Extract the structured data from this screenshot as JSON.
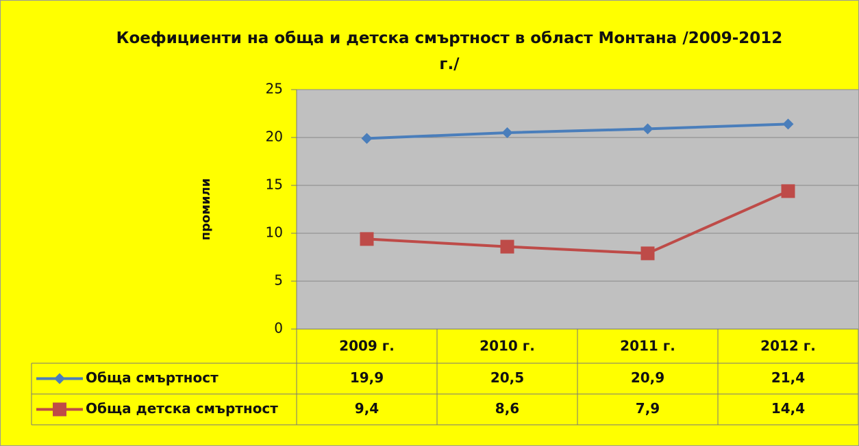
{
  "chart_data": {
    "type": "line",
    "title": "Коефициенти на обща и детска смъртност в област Монтана /2009-2012 г./",
    "y_label": "промили",
    "categories": [
      "2009 г.",
      "2010 г.",
      "2011 г.",
      "2012 г."
    ],
    "series": [
      {
        "name": "Обща смъртност",
        "color": "#4a7ebb",
        "marker": "diamond",
        "values": [
          19.9,
          20.5,
          20.9,
          21.4
        ],
        "value_labels": [
          "19,9",
          "20,5",
          "20,9",
          "21,4"
        ]
      },
      {
        "name": "Обща детска смъртност",
        "color": "#be4b48",
        "marker": "square",
        "values": [
          9.4,
          8.6,
          7.9,
          14.4
        ],
        "value_labels": [
          "9,4",
          "8,6",
          "7,9",
          "14,4"
        ]
      }
    ],
    "ylim": [
      0,
      25
    ],
    "yticks": [
      0,
      5,
      10,
      15,
      20,
      25
    ],
    "grid": true
  }
}
